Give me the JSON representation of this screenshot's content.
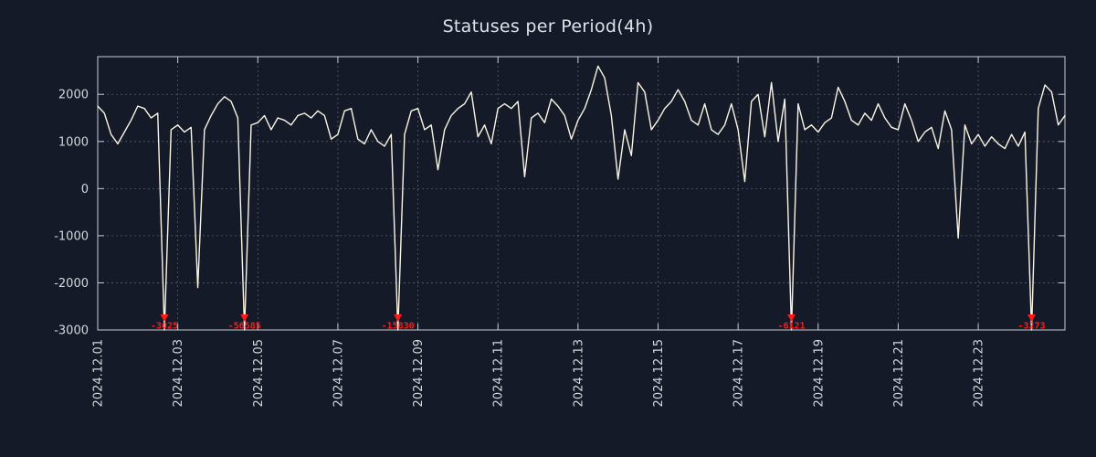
{
  "chart_data": {
    "type": "line",
    "title": "Statuses per Period(4h)",
    "period": "4h",
    "x_start": "2024.12.01",
    "points_per_day": 6,
    "x_tick_labels": [
      "2024.12.01",
      "2024.12.03",
      "2024.12.05",
      "2024.12.07",
      "2024.12.09",
      "2024.12.11",
      "2024.12.13",
      "2024.12.15",
      "2024.12.17",
      "2024.12.19",
      "2024.12.21",
      "2024.12.23"
    ],
    "x_tick_day_offsets": [
      0,
      2,
      4,
      6,
      8,
      10,
      12,
      14,
      16,
      18,
      20,
      22
    ],
    "y_ticks": [
      -3000,
      -2000,
      -1000,
      0,
      1000,
      2000
    ],
    "ylim": [
      -3000,
      2800
    ],
    "grid": true,
    "legend": "none",
    "colors": {
      "background": "#151a28",
      "line": "#fbf6e3",
      "frame": "#c8ccd4",
      "grid": "#9aa0b0",
      "marker": "#ff1a1a",
      "text": "#d4d8de"
    },
    "series": [
      {
        "name": "statuses",
        "values": [
          1750,
          1600,
          1150,
          950,
          1200,
          1450,
          1750,
          1700,
          1500,
          1600,
          -3025,
          1250,
          1350,
          1200,
          1300,
          -2100,
          1250,
          1550,
          1800,
          1950,
          1850,
          1500,
          -56585,
          1350,
          1400,
          1550,
          1250,
          1500,
          1450,
          1350,
          1550,
          1600,
          1500,
          1650,
          1550,
          1050,
          1150,
          1650,
          1700,
          1050,
          950,
          1250,
          1000,
          900,
          1150,
          -15830,
          1150,
          1650,
          1700,
          1250,
          1350,
          400,
          1250,
          1550,
          1700,
          1800,
          2050,
          1100,
          1350,
          950,
          1700,
          1800,
          1700,
          1850,
          250,
          1500,
          1600,
          1400,
          1900,
          1750,
          1550,
          1050,
          1450,
          1700,
          2100,
          2600,
          2350,
          1550,
          200,
          1250,
          700,
          2250,
          2050,
          1250,
          1450,
          1700,
          1850,
          2100,
          1850,
          1450,
          1350,
          1800,
          1250,
          1150,
          1350,
          1800,
          1250,
          150,
          1850,
          2000,
          1100,
          2250,
          1000,
          1900,
          -6121,
          1800,
          1250,
          1350,
          1200,
          1400,
          1500,
          2150,
          1850,
          1450,
          1350,
          1600,
          1450,
          1800,
          1500,
          1300,
          1250,
          1800,
          1450,
          1000,
          1200,
          1300,
          850,
          1650,
          1250,
          -1050,
          1350,
          950,
          1150,
          900,
          1100,
          950,
          850,
          1150,
          900,
          1200,
          -3273,
          1700,
          2200,
          2050,
          1350,
          1550
        ]
      }
    ],
    "min_markers": [
      {
        "index": 10,
        "value": -3025,
        "label": "-3025"
      },
      {
        "index": 22,
        "value": -56585,
        "label": "-56585"
      },
      {
        "index": 45,
        "value": -15830,
        "label": "-15830"
      },
      {
        "index": 104,
        "value": -6121,
        "label": "-6121"
      },
      {
        "index": 140,
        "value": -3273,
        "label": "-3273"
      }
    ]
  }
}
